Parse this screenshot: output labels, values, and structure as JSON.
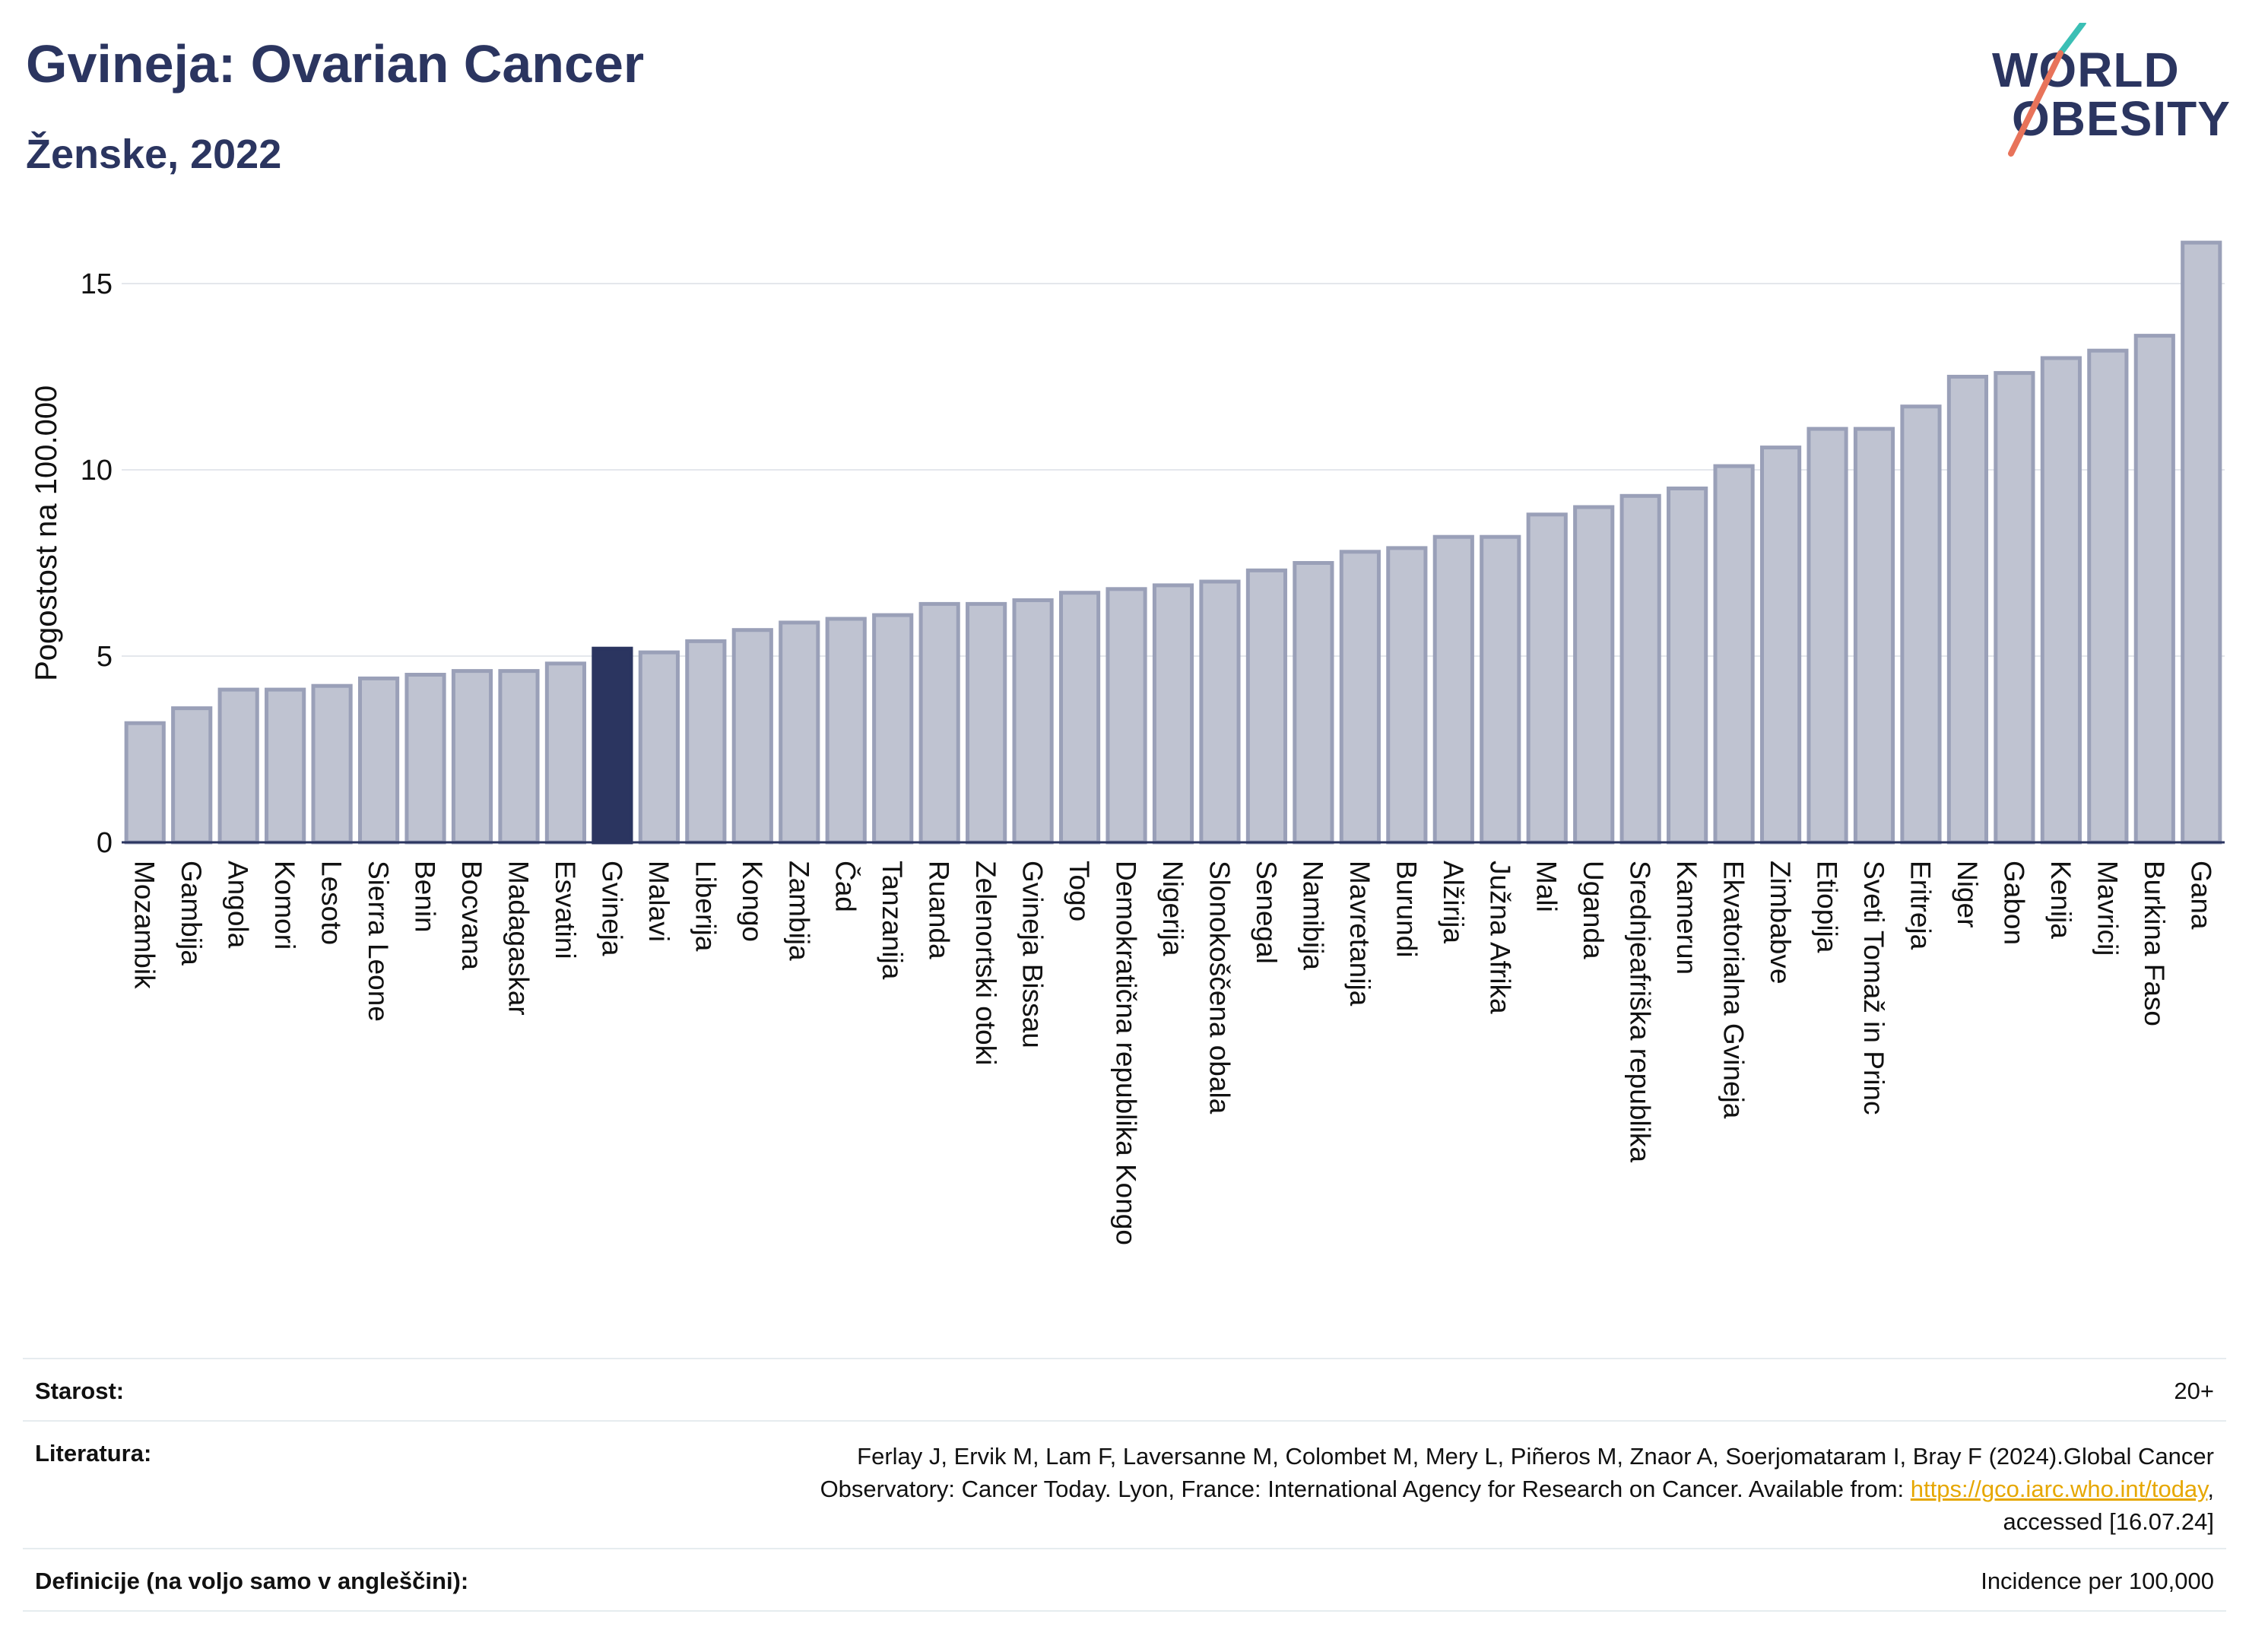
{
  "header": {
    "title": "Gvineja: Ovarian Cancer",
    "subtitle": "Ženske, 2022"
  },
  "logo": {
    "line1": "WORLD",
    "line2": "OBESITY",
    "accent_colors": [
      "#e8735a",
      "#3bbfb5"
    ]
  },
  "chart_data": {
    "type": "bar",
    "title": "Gvineja: Ovarian Cancer",
    "subtitle": "Ženske, 2022",
    "ylabel": "Pogostost na 100.000",
    "xlabel": "",
    "ylim": [
      0,
      16.5
    ],
    "yticks": [
      0,
      5,
      10,
      15
    ],
    "grid": true,
    "highlight": "Gvineja",
    "colors": {
      "bar": "#bfc3d1",
      "bar_edge": "#9aa0b8",
      "highlight": "#2b3560"
    },
    "categories": [
      "Mozambik",
      "Gambija",
      "Angola",
      "Komori",
      "Lesoto",
      "Sierra Leone",
      "Benin",
      "Bocvana",
      "Madagaskar",
      "Esvatini",
      "Gvineja",
      "Malavi",
      "Liberija",
      "Kongo",
      "Zambija",
      "Čad",
      "Tanzanija",
      "Ruanda",
      "Zelenortski otoki",
      "Gvineja Bissau",
      "Togo",
      "Demokratična republika Kongo",
      "Nigerija",
      "Slonokoščena obala",
      "Senegal",
      "Namibija",
      "Mavretanija",
      "Burundi",
      "Alžirija",
      "Južna Afrika",
      "Mali",
      "Uganda",
      "Srednjeafriška republika",
      "Kamerun",
      "Ekvatorialna Gvineja",
      "Zimbabve",
      "Etiopija",
      "Sveti Tomaž in Princ",
      "Eritreja",
      "Niger",
      "Gabon",
      "Kenija",
      "Mavricij",
      "Burkina Faso",
      "Gana"
    ],
    "values": [
      3.2,
      3.6,
      4.1,
      4.1,
      4.2,
      4.4,
      4.5,
      4.6,
      4.6,
      4.8,
      5.2,
      5.1,
      5.4,
      5.7,
      5.9,
      6.0,
      6.1,
      6.4,
      6.4,
      6.5,
      6.7,
      6.8,
      6.9,
      7.0,
      7.3,
      7.5,
      7.8,
      7.9,
      8.2,
      8.2,
      8.8,
      9.0,
      9.3,
      9.5,
      10.1,
      10.6,
      11.1,
      11.1,
      11.7,
      12.5,
      12.6,
      13.0,
      13.2,
      13.6,
      16.1
    ]
  },
  "meta": {
    "age_label": "Starost:",
    "age_value": "20+",
    "ref_label": "Literatura:",
    "ref_line1": "Ferlay J, Ervik M, Lam F, Laversanne M, Colombet M, Mery L, Piñeros M, Znaor A, Soerjomataram I, Bray F (2024).Global Cancer",
    "ref_line2_pre": "Observatory: Cancer Today. Lyon, France: International Agency for Research on Cancer. Available from: ",
    "ref_link": "https://gco.iarc.who.int/today",
    "ref_line2_post": ",",
    "ref_line3": "accessed [16.07.24]",
    "def_label": "Definicije (na voljo samo v angleščini):",
    "def_value": "Incidence per 100,000"
  }
}
